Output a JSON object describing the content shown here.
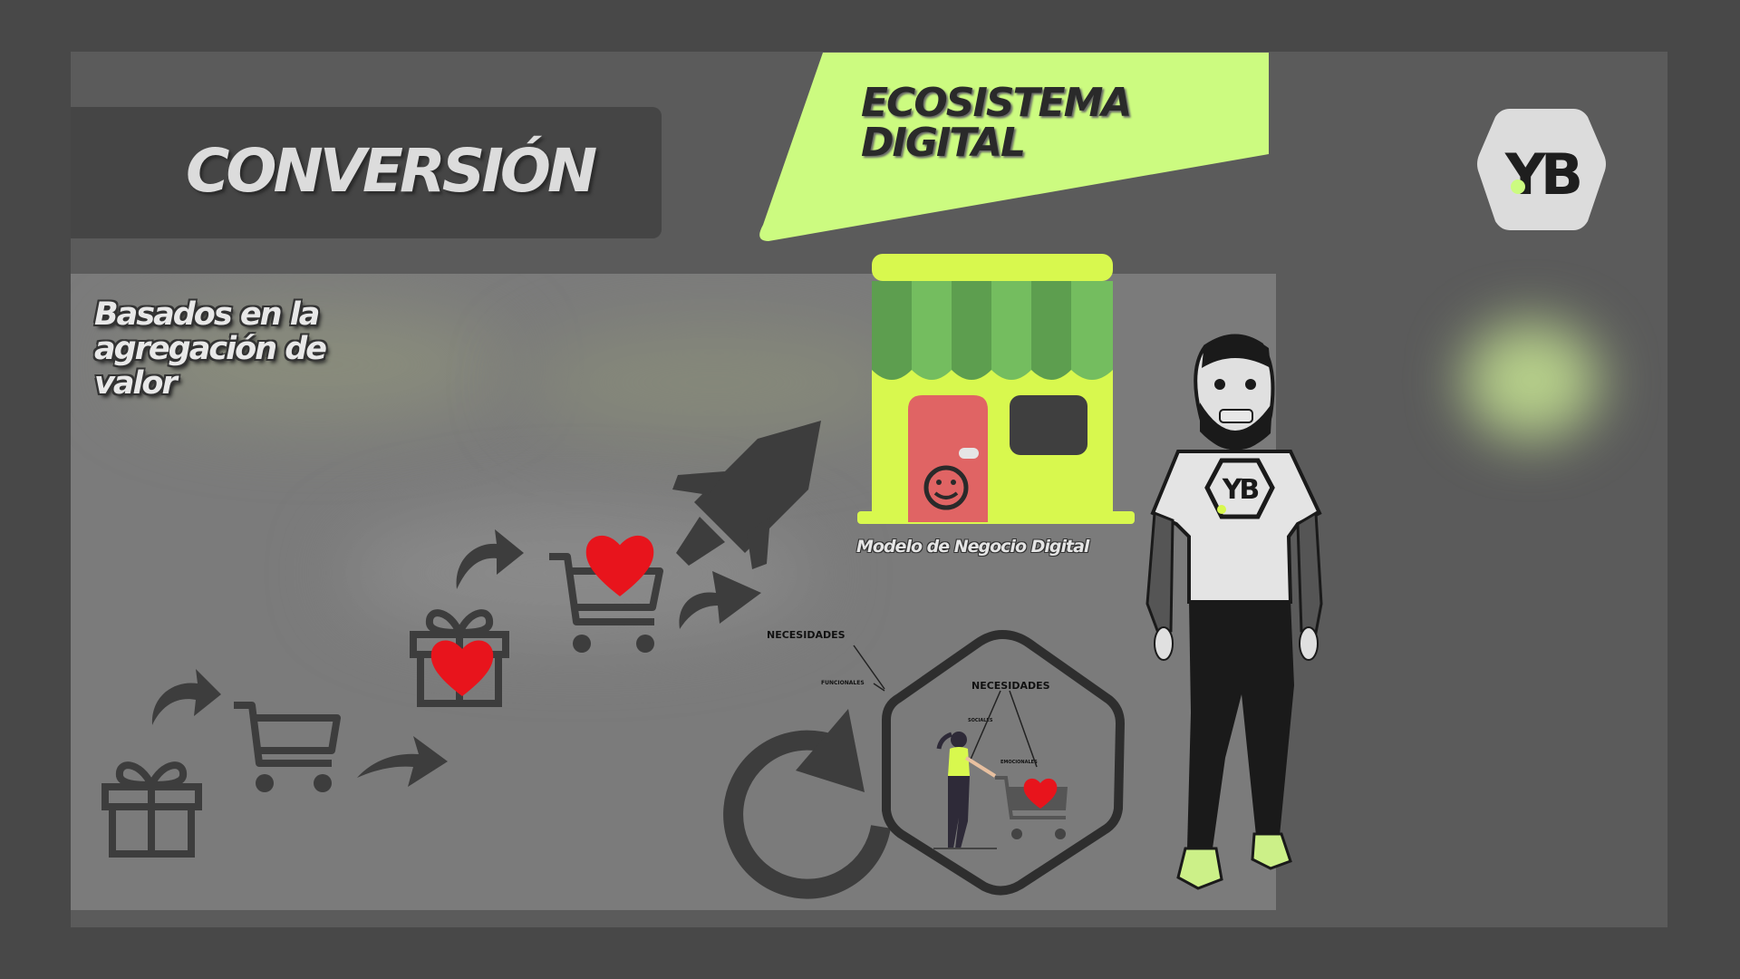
{
  "title": "CONVERSIÓN",
  "banner": {
    "line1": "ECOSISTEMA",
    "line2": "DIGITAL"
  },
  "subtitle": {
    "line1": "Basados en la",
    "line2": "agregación de",
    "line3": "valor"
  },
  "store_caption": "Modelo de Negocio Digital",
  "needs": {
    "outer_label": "NECESIDADES",
    "functional": "FUNCIONALES",
    "inner_label": "NECESIDADES",
    "social": "SOCIALES",
    "emotional": "EMOCIONALES"
  },
  "logo": {
    "text": "YB",
    "name": "logo-badge"
  },
  "colors": {
    "accent": "#ccfb80",
    "store_green": "#d8f84e",
    "awning_dark": "#5d9e4f",
    "awning_light": "#74bd5f",
    "door": "#e06464",
    "heart": "#e8141c",
    "icon": "#3d3d3d",
    "panel": "#5b5b5b",
    "lower_panel": "#7b7b7b"
  },
  "icons": [
    "gift-icon",
    "cart-icon",
    "curved-arrow-icon",
    "heart-icon",
    "rocket-icon",
    "refresh-icon",
    "store-icon",
    "shopper-illustration",
    "character-illustration",
    "hexagon-frame"
  ]
}
